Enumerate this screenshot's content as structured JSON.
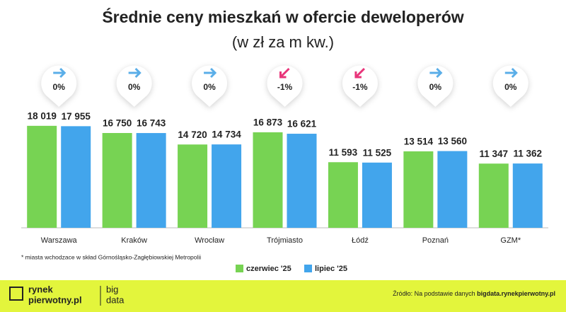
{
  "chart_data": {
    "type": "bar",
    "title": "Średnie ceny mieszkań w ofercie deweloperów",
    "subtitle": "(w zł za m kw.)",
    "categories": [
      "Warszawa",
      "Kraków",
      "Wrocław",
      "Trójmiasto",
      "Łódź",
      "Poznań",
      "GZM*"
    ],
    "series": [
      {
        "name": "czerwiec '25",
        "color": "#77d353",
        "values": [
          18019,
          16750,
          14720,
          16873,
          11593,
          13514,
          11347
        ],
        "value_labels": [
          "18 019",
          "16 750",
          "14 720",
          "16 873",
          "11 593",
          "13 514",
          "11 347"
        ]
      },
      {
        "name": "lipiec '25",
        "color": "#42a5ec",
        "values": [
          17955,
          16743,
          14734,
          16621,
          11525,
          13560,
          11362
        ],
        "value_labels": [
          "17 955",
          "16 743",
          "14 734",
          "16 621",
          "11 525",
          "13 560",
          "11 362"
        ]
      }
    ],
    "change_values": [
      0,
      0,
      0,
      -1,
      -1,
      0,
      0
    ],
    "change_labels": [
      "0%",
      "0%",
      "0%",
      "-1%",
      "-1%",
      "0%",
      "0%"
    ],
    "ylim": [
      0,
      20000
    ],
    "footnote": "* miasta wchodzace w skład Górnośląsko-Zagłębiowskiej Metropolii",
    "legend": "bottom"
  },
  "footer": {
    "logo_line1": "rynek",
    "logo_line2": "pierwotny.pl",
    "big": "big",
    "data": "data",
    "source": "Źródło: Na podstawie danych ",
    "source_link": "bigdata.rynekpierwotny.pl"
  }
}
